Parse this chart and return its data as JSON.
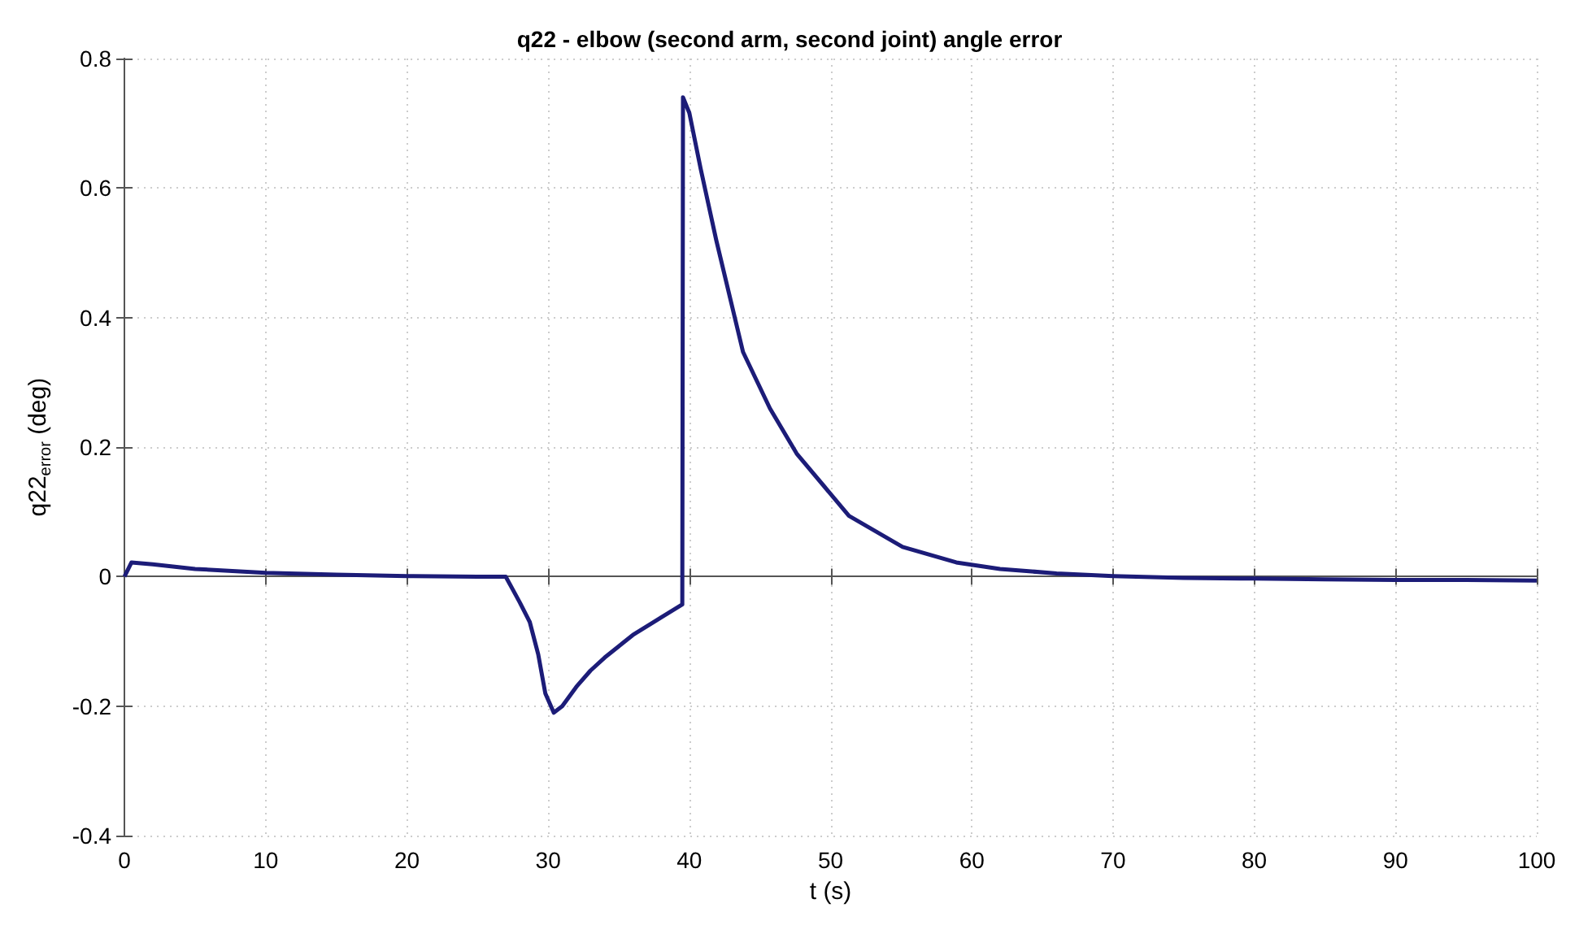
{
  "chart_data": {
    "type": "line",
    "title": "q22 - elbow (second arm, second joint) angle error",
    "xlabel": "t (s)",
    "ylabel": "q22$_{error}$ (deg)",
    "xlim": [
      0,
      100
    ],
    "xticks": [
      0,
      10,
      20,
      30,
      40,
      50,
      60,
      70,
      80,
      90,
      100
    ],
    "ylim": [
      -0.4,
      0.8
    ],
    "yticks": [
      -0.4,
      -0.2,
      0,
      0.2,
      0.4,
      0.6,
      0.8
    ],
    "grid": true,
    "marker": "none",
    "line_style": "solid",
    "series": [
      {
        "color": "#1c1c78",
        "x": [
          0,
          0.5,
          2,
          5,
          10,
          15,
          20,
          25,
          27,
          27.5,
          28,
          28.7,
          29.3,
          29.8,
          30.4,
          31,
          32,
          33,
          34,
          36,
          38,
          39.5,
          39.55,
          40,
          40.8,
          41.9,
          43.8,
          45.7,
          47.6,
          51.3,
          55.1,
          58.9,
          62,
          66,
          70,
          75,
          80,
          85,
          90,
          95,
          100
        ],
        "values": [
          0,
          0.022,
          0.019,
          0.012,
          0.006,
          0.003,
          0.001,
          0,
          0,
          -0.02,
          -0.04,
          -0.07,
          -0.12,
          -0.18,
          -0.21,
          -0.2,
          -0.17,
          -0.145,
          -0.125,
          -0.09,
          -0.063,
          -0.043,
          0.74,
          0.716,
          0.63,
          0.52,
          0.347,
          0.26,
          0.19,
          0.094,
          0.046,
          0.022,
          0.012,
          0.005,
          0.001,
          -0.002,
          -0.003,
          -0.004,
          -0.005,
          -0.005,
          -0.006
        ]
      }
    ]
  }
}
